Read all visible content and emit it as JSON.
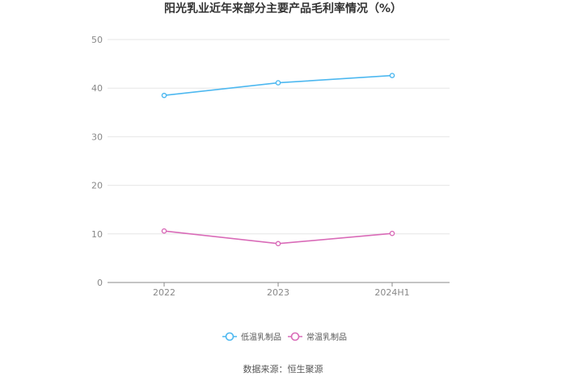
{
  "chart_data": {
    "type": "line",
    "title": "阳光乳业近年来部分主要产品毛利率情况（%）",
    "categories": [
      "2022",
      "2023",
      "2024H1"
    ],
    "series": [
      {
        "name": "低温乳制品",
        "values": [
          38.5,
          41.1,
          42.6
        ],
        "color": "#4db8f0"
      },
      {
        "name": "常温乳制品",
        "values": [
          10.6,
          8.0,
          10.1
        ],
        "color": "#d96bb8"
      }
    ],
    "ylim": [
      0,
      50
    ],
    "yticks": [
      0,
      10,
      20,
      30,
      40,
      50
    ],
    "grid": true,
    "legend_position": "bottom",
    "xlabel": "",
    "ylabel": ""
  },
  "source": "数据来源：恒生聚源"
}
